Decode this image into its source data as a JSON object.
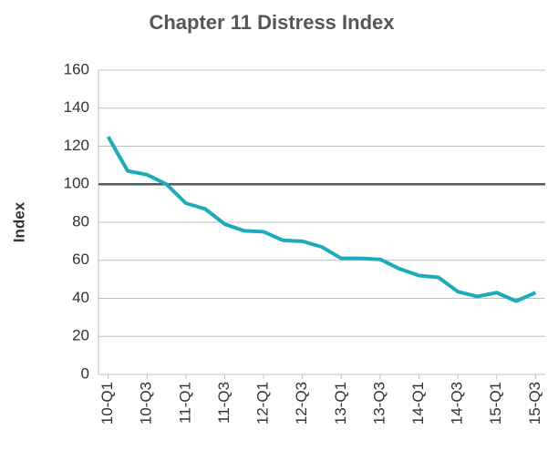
{
  "chart_data": {
    "type": "line",
    "title": "Chapter 11 Distress Index",
    "y_label": "Index",
    "categories": [
      "10-Q1",
      null,
      "10-Q3",
      null,
      "11-Q1",
      null,
      "11-Q3",
      null,
      "12-Q1",
      null,
      "12-Q3",
      null,
      "13-Q1",
      null,
      "13-Q3",
      null,
      "14-Q1",
      null,
      "14-Q3",
      null,
      "15-Q1",
      null,
      "15-Q3"
    ],
    "series": [
      {
        "name": "Index",
        "color": "#1aabbd",
        "values": [
          125,
          107,
          105,
          100,
          90,
          87,
          79,
          75.5,
          75,
          70.5,
          70,
          67,
          61,
          61,
          60.5,
          55.5,
          52,
          51,
          43.5,
          41,
          43,
          38.5,
          43
        ]
      }
    ],
    "ylim": [
      0,
      160
    ],
    "yticks": [
      0,
      20,
      40,
      60,
      80,
      100,
      120,
      140,
      160
    ],
    "grid": true,
    "reference_line": 100
  }
}
